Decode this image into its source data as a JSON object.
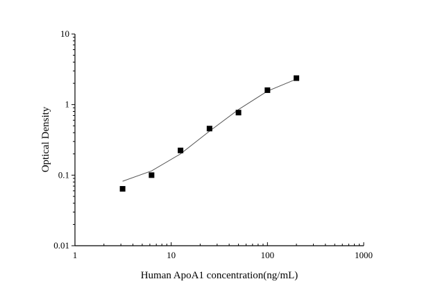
{
  "chart_data": {
    "type": "scatter",
    "title": "",
    "xlabel": "Human ApoA1 concentration(ng/mL)",
    "ylabel": "Optical Density",
    "xscale": "log",
    "yscale": "log",
    "xlim": [
      1,
      1000
    ],
    "ylim": [
      0.01,
      10
    ],
    "x_ticks": [
      "1",
      "10",
      "100",
      "1000"
    ],
    "y_ticks": [
      "0.01",
      "0.1",
      "1",
      "10"
    ],
    "grid": false,
    "legend": "none",
    "marker": "square",
    "colors": {
      "marker": "#000000",
      "curve": "#555555",
      "axis": "#000000"
    },
    "points": {
      "x": [
        3.125,
        6.25,
        12.5,
        25,
        50,
        100,
        200
      ],
      "y": [
        0.064,
        0.1,
        0.224,
        0.457,
        0.77,
        1.6,
        2.37
      ]
    },
    "fit_curve": {
      "x": [
        3.125,
        6.25,
        12.5,
        25,
        50,
        100,
        200
      ],
      "y": [
        0.082,
        0.115,
        0.2,
        0.42,
        0.85,
        1.55,
        2.3
      ]
    }
  }
}
